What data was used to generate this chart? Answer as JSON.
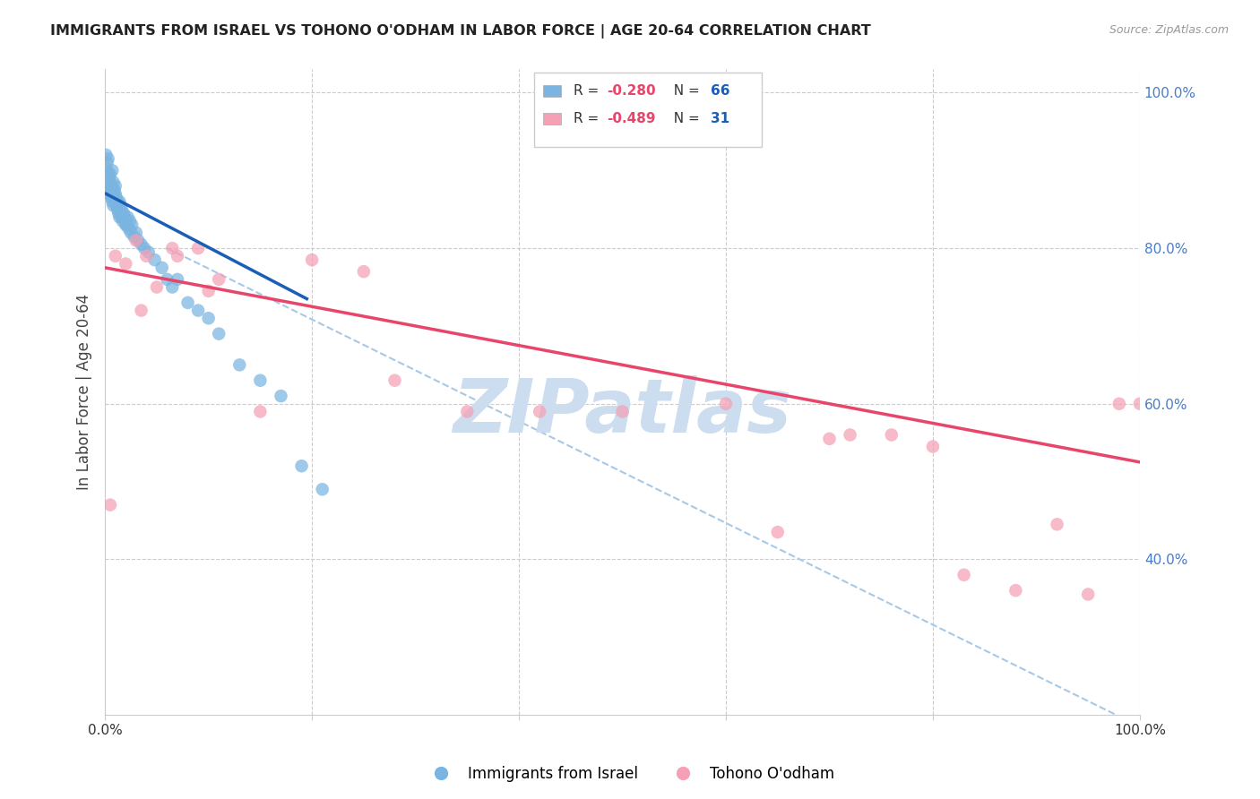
{
  "title": "IMMIGRANTS FROM ISRAEL VS TOHONO O'ODHAM IN LABOR FORCE | AGE 20-64 CORRELATION CHART",
  "source": "Source: ZipAtlas.com",
  "ylabel": "In Labor Force | Age 20-64",
  "legend_blue_r": "R = -0.280",
  "legend_blue_n": "N = 66",
  "legend_pink_r": "R = -0.489",
  "legend_pink_n": "N = 31",
  "blue_color": "#7ab4e0",
  "pink_color": "#f5a0b5",
  "blue_line_color": "#1a5eb8",
  "pink_line_color": "#e8456a",
  "dashed_line_color": "#a8c8e8",
  "watermark": "ZIPatlas",
  "right_ytick_color": "#4a7cc7",
  "blue_scatter_x": [
    0.001,
    0.002,
    0.002,
    0.003,
    0.003,
    0.003,
    0.004,
    0.004,
    0.005,
    0.005,
    0.005,
    0.006,
    0.006,
    0.007,
    0.007,
    0.007,
    0.008,
    0.008,
    0.008,
    0.009,
    0.009,
    0.01,
    0.01,
    0.01,
    0.011,
    0.011,
    0.012,
    0.012,
    0.013,
    0.013,
    0.014,
    0.014,
    0.015,
    0.015,
    0.016,
    0.016,
    0.017,
    0.018,
    0.019,
    0.02,
    0.021,
    0.022,
    0.023,
    0.024,
    0.025,
    0.026,
    0.028,
    0.03,
    0.032,
    0.035,
    0.038,
    0.042,
    0.048,
    0.055,
    0.06,
    0.065,
    0.07,
    0.08,
    0.09,
    0.1,
    0.11,
    0.13,
    0.15,
    0.17,
    0.19,
    0.21
  ],
  "blue_scatter_y": [
    0.92,
    0.9,
    0.91,
    0.895,
    0.88,
    0.915,
    0.87,
    0.89,
    0.88,
    0.87,
    0.895,
    0.865,
    0.88,
    0.875,
    0.86,
    0.9,
    0.87,
    0.855,
    0.885,
    0.865,
    0.875,
    0.86,
    0.87,
    0.88,
    0.855,
    0.865,
    0.85,
    0.86,
    0.855,
    0.845,
    0.84,
    0.86,
    0.845,
    0.855,
    0.84,
    0.85,
    0.835,
    0.845,
    0.84,
    0.83,
    0.83,
    0.84,
    0.825,
    0.835,
    0.82,
    0.83,
    0.815,
    0.82,
    0.81,
    0.805,
    0.8,
    0.795,
    0.785,
    0.775,
    0.76,
    0.75,
    0.76,
    0.73,
    0.72,
    0.71,
    0.69,
    0.65,
    0.63,
    0.61,
    0.52,
    0.49
  ],
  "pink_scatter_x": [
    0.005,
    0.01,
    0.02,
    0.03,
    0.035,
    0.04,
    0.05,
    0.065,
    0.07,
    0.09,
    0.1,
    0.11,
    0.15,
    0.2,
    0.25,
    0.28,
    0.35,
    0.42,
    0.5,
    0.6,
    0.65,
    0.7,
    0.72,
    0.76,
    0.8,
    0.83,
    0.88,
    0.92,
    0.95,
    0.98,
    1.0
  ],
  "pink_scatter_y": [
    0.47,
    0.79,
    0.78,
    0.81,
    0.72,
    0.79,
    0.75,
    0.8,
    0.79,
    0.8,
    0.745,
    0.76,
    0.59,
    0.785,
    0.77,
    0.63,
    0.59,
    0.59,
    0.59,
    0.6,
    0.435,
    0.555,
    0.56,
    0.56,
    0.545,
    0.38,
    0.36,
    0.445,
    0.355,
    0.6,
    0.6
  ],
  "blue_line_x": [
    0.001,
    0.195
  ],
  "blue_line_y": [
    0.87,
    0.735
  ],
  "pink_line_x": [
    0.0,
    1.0
  ],
  "pink_line_y": [
    0.775,
    0.525
  ],
  "dashed_line_x": [
    0.06,
    1.0
  ],
  "dashed_line_y": [
    0.8,
    0.185
  ],
  "xmin": 0.0,
  "xmax": 1.0,
  "ymin": 0.2,
  "ymax": 1.03,
  "right_yticks": [
    0.4,
    0.6,
    0.8,
    1.0
  ],
  "right_yticklabels": [
    "40.0%",
    "60.0%",
    "80.0%",
    "100.0%"
  ],
  "xtick_positions": [
    0.0,
    0.2,
    0.4,
    0.6,
    0.8,
    1.0
  ],
  "xtick_labels": [
    "0.0%",
    "",
    "",
    "",
    "",
    "100.0%"
  ],
  "background_color": "#ffffff",
  "grid_color": "#cccccc",
  "title_color": "#222222",
  "title_fontsize": 11.5,
  "source_color": "#999999",
  "source_fontsize": 9,
  "watermark_color": "#ccddf0",
  "watermark_fontsize": 60,
  "r_value_color": "#e8456a",
  "n_value_color": "#1a5eb8"
}
